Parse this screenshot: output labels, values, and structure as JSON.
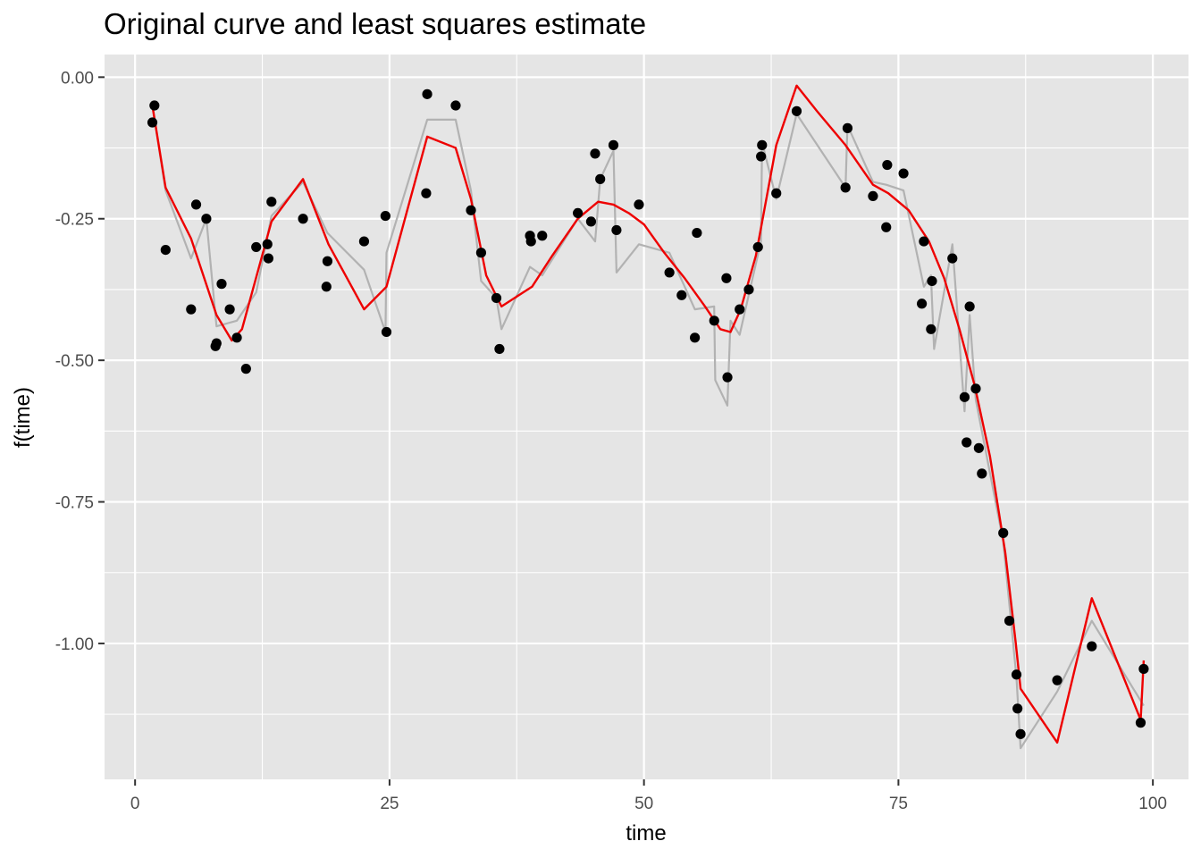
{
  "chart_data": {
    "type": "scatter",
    "title": "Original curve and least squares estimate",
    "xlabel": "time",
    "ylabel": "f(time)",
    "xlim": [
      -3,
      103.5
    ],
    "ylim": [
      -1.24,
      0.04
    ],
    "x_ticks": [
      0,
      25,
      50,
      75,
      100
    ],
    "x_tick_labels": [
      "0",
      "25",
      "50",
      "75",
      "100"
    ],
    "y_ticks": [
      0,
      -0.25,
      -0.5,
      -0.75,
      -1.0
    ],
    "y_tick_labels": [
      "0.00",
      "-0.25",
      "-0.50",
      "-0.75",
      "-1.00"
    ],
    "grid": true,
    "colors": {
      "panel_background": "#e5e5e5",
      "grid": "#ffffff",
      "points": "#000000",
      "original_curve": "#b2b2b2",
      "estimate_curve": "#ee0000"
    },
    "series": [
      {
        "kind": "points",
        "x": [
          1.7,
          1.9,
          3.0,
          5.5,
          6.0,
          7.0,
          7.9,
          8.0,
          8.5,
          9.3,
          10.0,
          10.9,
          11.9,
          13.0,
          13.1,
          13.4,
          16.5,
          18.8,
          18.9,
          22.5,
          24.6,
          24.7,
          28.6,
          28.7,
          31.5,
          33.0,
          34.0,
          35.5,
          35.8,
          38.8,
          38.9,
          40.0,
          43.5,
          44.8,
          45.2,
          45.7,
          47.0,
          47.3,
          49.5,
          52.5,
          53.7,
          55.0,
          55.2,
          56.9,
          58.1,
          58.2,
          59.4,
          60.3,
          61.2,
          61.5,
          61.6,
          63.0,
          65.0,
          69.8,
          70.0,
          72.5,
          73.8,
          73.9,
          75.5,
          77.3,
          77.5,
          78.2,
          78.3,
          80.3,
          81.5,
          81.7,
          82.0,
          82.6,
          82.9,
          83.2,
          85.3,
          85.9,
          86.6,
          86.7,
          87.0,
          90.6,
          94.0,
          98.8,
          99.1
        ],
        "y": [
          -0.08,
          -0.05,
          -0.305,
          -0.41,
          -0.225,
          -0.25,
          -0.475,
          -0.47,
          -0.365,
          -0.41,
          -0.46,
          -0.515,
          -0.3,
          -0.295,
          -0.32,
          -0.22,
          -0.25,
          -0.37,
          -0.325,
          -0.29,
          -0.245,
          -0.45,
          -0.205,
          -0.03,
          -0.05,
          -0.235,
          -0.31,
          -0.39,
          -0.48,
          -0.28,
          -0.29,
          -0.28,
          -0.24,
          -0.255,
          -0.135,
          -0.18,
          -0.12,
          -0.27,
          -0.225,
          -0.345,
          -0.385,
          -0.46,
          -0.275,
          -0.43,
          -0.355,
          -0.53,
          -0.41,
          -0.375,
          -0.3,
          -0.14,
          -0.12,
          -0.205,
          -0.06,
          -0.195,
          -0.09,
          -0.21,
          -0.265,
          -0.155,
          -0.17,
          -0.4,
          -0.29,
          -0.445,
          -0.36,
          -0.32,
          -0.565,
          -0.645,
          -0.405,
          -0.55,
          -0.655,
          -0.7,
          -0.805,
          -0.96,
          -1.055,
          -1.115,
          -1.16,
          -1.065,
          -1.005,
          -1.14,
          -1.045
        ]
      },
      {
        "kind": "line",
        "x": [
          1.7,
          3.0,
          5.5,
          7.0,
          8.0,
          10.0,
          11.9,
          13.4,
          16.5,
          18.9,
          22.5,
          24.6,
          24.7,
          28.7,
          31.5,
          33.0,
          34.0,
          35.5,
          36.0,
          38.8,
          40.0,
          43.5,
          45.2,
          45.7,
          47.0,
          47.3,
          49.5,
          52.5,
          55.0,
          56.9,
          57.0,
          58.2,
          58.5,
          59.4,
          61.5,
          61.6,
          63.0,
          65.0,
          69.8,
          70.0,
          72.5,
          73.8,
          75.5,
          77.5,
          78.2,
          78.5,
          80.3,
          81.5,
          82.0,
          82.6,
          85.3,
          86.6,
          87.0,
          90.6,
          94.0,
          99.1
        ],
        "y": [
          -0.05,
          -0.2,
          -0.32,
          -0.25,
          -0.44,
          -0.43,
          -0.38,
          -0.245,
          -0.185,
          -0.275,
          -0.34,
          -0.45,
          -0.31,
          -0.075,
          -0.075,
          -0.2,
          -0.36,
          -0.39,
          -0.445,
          -0.335,
          -0.35,
          -0.25,
          -0.29,
          -0.18,
          -0.13,
          -0.345,
          -0.295,
          -0.31,
          -0.41,
          -0.405,
          -0.535,
          -0.58,
          -0.43,
          -0.455,
          -0.29,
          -0.115,
          -0.215,
          -0.065,
          -0.195,
          -0.085,
          -0.185,
          -0.19,
          -0.2,
          -0.37,
          -0.35,
          -0.48,
          -0.295,
          -0.59,
          -0.42,
          -0.57,
          -0.82,
          -1.06,
          -1.185,
          -1.085,
          -0.96,
          -1.11
        ]
      },
      {
        "kind": "line",
        "x": [
          1.7,
          3.0,
          5.5,
          8.0,
          9.5,
          10.5,
          13.4,
          16.5,
          19.0,
          22.5,
          24.7,
          28.7,
          31.5,
          33.0,
          34.5,
          36.0,
          39.0,
          41.0,
          43.5,
          45.5,
          47.0,
          48.5,
          50.0,
          52.0,
          54.0,
          56.0,
          57.5,
          58.5,
          59.5,
          61.0,
          63.0,
          65.0,
          67.0,
          69.8,
          72.5,
          74.0,
          76.0,
          78.0,
          79.5,
          81.0,
          82.5,
          84.0,
          85.5,
          86.5,
          87.0,
          90.6,
          94.0,
          98.8,
          99.1
        ],
        "y": [
          -0.05,
          -0.195,
          -0.285,
          -0.42,
          -0.465,
          -0.445,
          -0.255,
          -0.18,
          -0.295,
          -0.41,
          -0.37,
          -0.105,
          -0.125,
          -0.215,
          -0.35,
          -0.405,
          -0.37,
          -0.315,
          -0.25,
          -0.22,
          -0.225,
          -0.24,
          -0.26,
          -0.31,
          -0.355,
          -0.405,
          -0.445,
          -0.45,
          -0.41,
          -0.315,
          -0.12,
          -0.015,
          -0.06,
          -0.12,
          -0.19,
          -0.205,
          -0.235,
          -0.29,
          -0.355,
          -0.445,
          -0.545,
          -0.67,
          -0.84,
          -0.995,
          -1.08,
          -1.175,
          -0.92,
          -1.135,
          -1.03
        ]
      }
    ]
  }
}
